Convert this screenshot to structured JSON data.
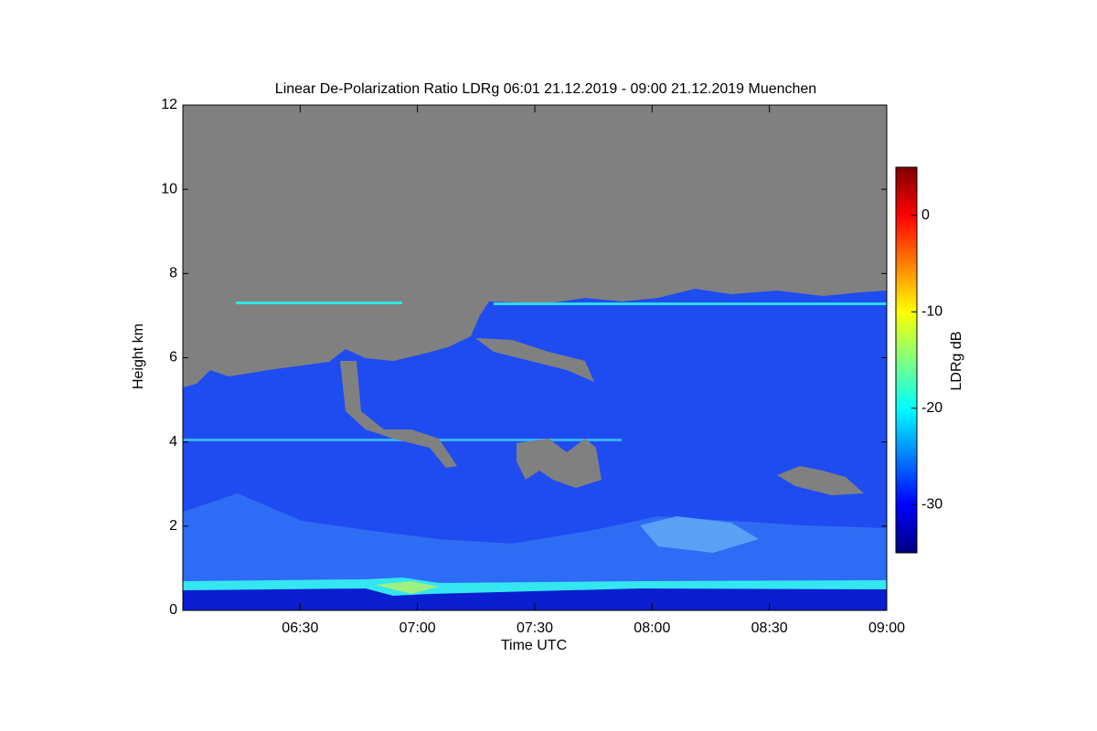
{
  "chart_data": {
    "type": "heatmap",
    "title": "Linear De-Polarization Ratio LDRg   06:01 21.12.2019 - 09:00 21.12.2019 Muenchen",
    "x_label": "Time UTC",
    "y_label": "Height km",
    "colorbar_label": "LDRg dB",
    "xlim": [
      "06:00",
      "09:00"
    ],
    "xticks": [
      "06:30",
      "07:00",
      "07:30",
      "08:00",
      "08:30",
      "09:00"
    ],
    "ylim": [
      0,
      12
    ],
    "yticks": [
      0,
      2,
      4,
      6,
      8,
      10,
      12
    ],
    "clim": [
      -35,
      5
    ],
    "cticks": [
      -30,
      -20,
      -10,
      0
    ],
    "colormap": [
      "#00007f",
      "#0000ff",
      "#007fff",
      "#00ffff",
      "#7fff7f",
      "#ffff00",
      "#ff7f00",
      "#ff0000",
      "#7f0000"
    ]
  }
}
